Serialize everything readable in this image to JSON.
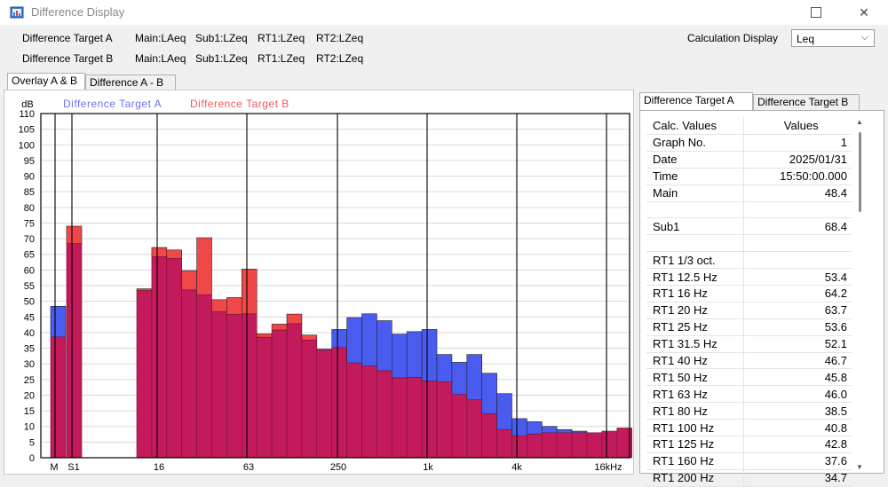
{
  "window": {
    "title": "Difference Display"
  },
  "targets": {
    "a": {
      "label": "Difference Target A",
      "main": "Main:LAeq",
      "sub1": "Sub1:LZeq",
      "rt1": "RT1:LZeq",
      "rt2": "RT2:LZeq"
    },
    "b": {
      "label": "Difference Target B",
      "main": "Main:LAeq",
      "sub1": "Sub1:LZeq",
      "rt1": "RT1:LZeq",
      "rt2": "RT2:LZeq"
    }
  },
  "calc_display": {
    "label": "Calculation Display",
    "value": "Leq"
  },
  "tabs": [
    {
      "label": "Overlay A & B"
    },
    {
      "label": "Difference A - B"
    }
  ],
  "right_tabs": [
    {
      "label": "Difference Target A"
    },
    {
      "label": "Difference Target B"
    }
  ],
  "table": {
    "headers": [
      "Calc. Values",
      "Values"
    ],
    "rows": [
      {
        "name": "Graph No.",
        "value": "1"
      },
      {
        "name": "Date",
        "value": "2025/01/31"
      },
      {
        "name": "Time",
        "value": "15:50:00.000"
      },
      {
        "name": "Main",
        "value": "48.4"
      },
      {
        "name": "",
        "value": ""
      },
      {
        "name": "Sub1",
        "value": "68.4"
      },
      {
        "name": "",
        "value": ""
      },
      {
        "name": "RT1 1/3 oct.",
        "value": ""
      },
      {
        "name": "RT1 12.5 Hz",
        "value": "53.4"
      },
      {
        "name": "RT1 16 Hz",
        "value": "64.2"
      },
      {
        "name": "RT1 20 Hz",
        "value": "63.7"
      },
      {
        "name": "RT1 25 Hz",
        "value": "53.6"
      },
      {
        "name": "RT1 31.5 Hz",
        "value": "52.1"
      },
      {
        "name": "RT1 40 Hz",
        "value": "46.7"
      },
      {
        "name": "RT1 50 Hz",
        "value": "45.8"
      },
      {
        "name": "RT1 63 Hz",
        "value": "46.0"
      },
      {
        "name": "RT1 80 Hz",
        "value": "38.5"
      },
      {
        "name": "RT1 100 Hz",
        "value": "40.8"
      },
      {
        "name": "RT1 125 Hz",
        "value": "42.8"
      },
      {
        "name": "RT1 160 Hz",
        "value": "37.6"
      },
      {
        "name": "RT1 200 Hz",
        "value": "34.7"
      }
    ]
  },
  "chart_data": {
    "type": "bar",
    "ylabel": "dB",
    "ylim": [
      0,
      110
    ],
    "yticks": [
      0,
      5,
      10,
      15,
      20,
      25,
      30,
      35,
      40,
      45,
      50,
      55,
      60,
      65,
      70,
      75,
      80,
      85,
      90,
      95,
      100,
      105,
      110
    ],
    "xtick_labels": [
      "M",
      "S1",
      "16",
      "63",
      "250",
      "1k",
      "4k",
      "16kHz"
    ],
    "grid": true,
    "legend_position": "top-left",
    "series": [
      {
        "name": "Difference Target A",
        "color": "#4a5cf0",
        "main": 48.4,
        "sub1": 68.4,
        "bands": [
          53.4,
          64.2,
          63.7,
          53.6,
          52.1,
          46.7,
          45.8,
          46.0,
          38.5,
          40.8,
          42.8,
          37.6,
          34.7,
          41.0,
          44.8,
          46.0,
          43.8,
          39.5,
          40.3,
          41.0,
          33.0,
          30.5,
          33.0,
          27.0,
          20.5,
          12.5,
          11.5,
          10.0,
          9.0,
          8.5,
          8.0,
          8.5,
          9.5
        ]
      },
      {
        "name": "Difference Target B",
        "color": "#f04848",
        "main": 38.6,
        "sub1": 74.0,
        "bands": [
          54.0,
          67.2,
          66.4,
          59.8,
          70.3,
          50.5,
          51.2,
          60.3,
          39.6,
          42.7,
          45.9,
          39.2,
          34.4,
          35.2,
          30.3,
          29.3,
          27.8,
          25.5,
          25.7,
          24.5,
          24.3,
          20.2,
          18.5,
          14.0,
          9.0,
          7.0,
          7.5,
          8.0,
          8.0,
          8.0,
          8.0,
          8.5,
          9.5
        ]
      }
    ]
  }
}
